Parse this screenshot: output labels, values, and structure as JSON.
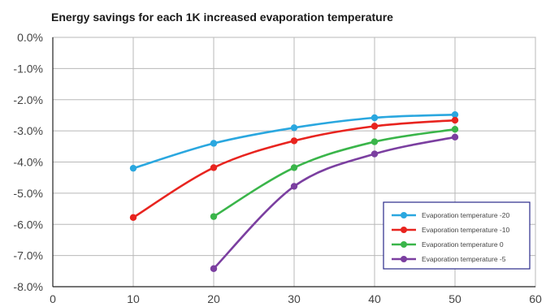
{
  "chart_data": {
    "type": "line",
    "title": "Energy savings for each 1K increased evaporation temperature",
    "xlabel": "",
    "ylabel": "",
    "xlim": [
      0,
      60
    ],
    "ylim": [
      -8.0,
      0.0
    ],
    "x_ticks": [
      0,
      10,
      20,
      30,
      40,
      50,
      60
    ],
    "x_tick_labels": [
      "0",
      "10",
      "20",
      "30",
      "40",
      "50",
      "60"
    ],
    "y_ticks": [
      0,
      -1,
      -2,
      -3,
      -4,
      -5,
      -6,
      -7,
      -8
    ],
    "y_tick_labels": [
      "0.0%",
      "-1.0%",
      "-2.0%",
      "-3.0%",
      "-4.0%",
      "-5.0%",
      "-6.0%",
      "-7.0%",
      "-8.0%"
    ],
    "grid": true,
    "legend_position": "bottom-right",
    "series": [
      {
        "name": "Evaporation temperature -20",
        "color": "#2aa7df",
        "x": [
          10,
          20,
          30,
          40,
          50
        ],
        "y": [
          -4.2,
          -3.4,
          -2.9,
          -2.58,
          -2.48
        ]
      },
      {
        "name": "Evaporation temperature -10",
        "color": "#e8241f",
        "x": [
          10,
          20,
          30,
          40,
          50
        ],
        "y": [
          -5.78,
          -4.18,
          -3.32,
          -2.85,
          -2.66
        ]
      },
      {
        "name": "Evaporation temperature 0",
        "color": "#3ab54a",
        "x": [
          20,
          30,
          40,
          50
        ],
        "y": [
          -5.75,
          -4.18,
          -3.35,
          -2.95
        ]
      },
      {
        "name": "Evaporation temperature -5",
        "color": "#7b3fa0",
        "x": [
          20,
          30,
          40,
          50
        ],
        "y": [
          -7.42,
          -4.78,
          -3.74,
          -3.2
        ]
      }
    ]
  }
}
